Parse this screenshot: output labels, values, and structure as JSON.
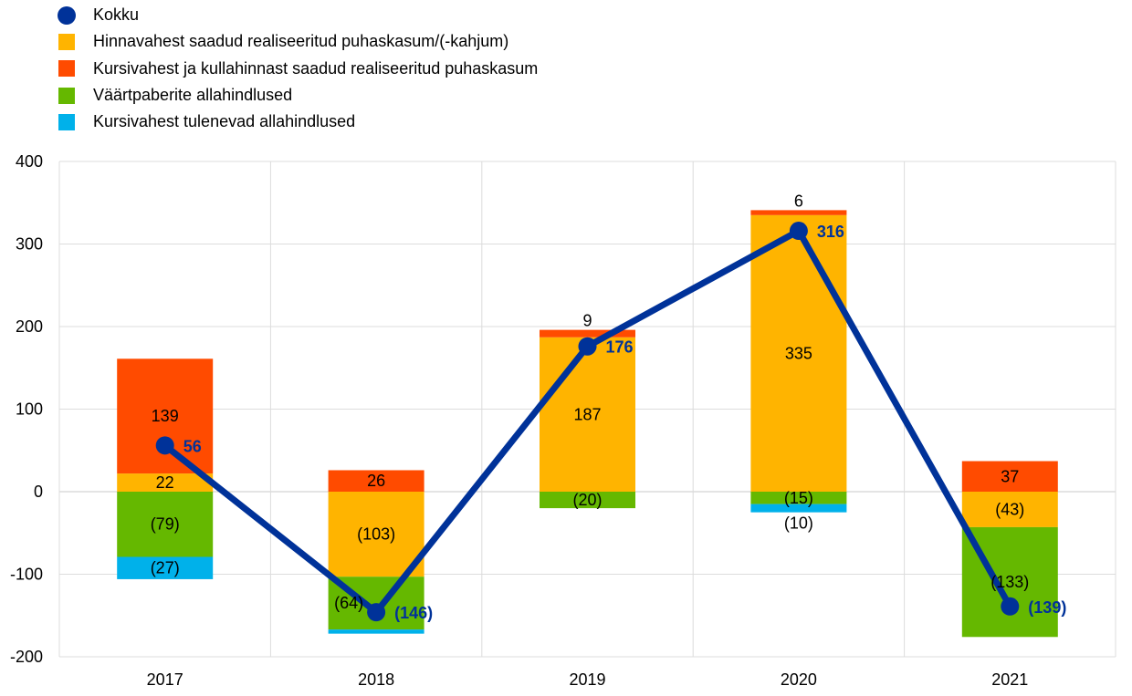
{
  "chart_data": {
    "type": "bar",
    "stacked": true,
    "categories": [
      "2017",
      "2018",
      "2019",
      "2020",
      "2021"
    ],
    "ylim": [
      -200,
      400
    ],
    "yticks": [
      400,
      300,
      200,
      100,
      0,
      -100,
      -200
    ],
    "ytick_labels": [
      "400",
      "300",
      "200",
      "100",
      "0",
      "-100",
      "-200"
    ],
    "grid": true,
    "legend_placement": "top-left",
    "series": [
      {
        "name": "Hinnavahest saadud realiseeritud puhaskasum/(-kahjum)",
        "color": "#FFB400",
        "values": [
          22,
          -103,
          187,
          335,
          -43
        ],
        "data_labels": [
          "22",
          "(103)",
          "187",
          "335",
          "(43)"
        ]
      },
      {
        "name": "Kursivahest ja kullahinnast saadud realiseeritud puhaskasum",
        "color": "#FF4B00",
        "values": [
          139,
          26,
          9,
          6,
          37
        ],
        "data_labels": [
          "139",
          "26",
          "9",
          "6",
          "37"
        ]
      },
      {
        "name": "Väärtpaberite allahindlused",
        "color": "#65B800",
        "values": [
          -79,
          -64,
          -20,
          -15,
          -133
        ],
        "data_labels": [
          "(79)",
          "(64)",
          "(20)",
          "(15)",
          "(133)"
        ]
      },
      {
        "name": "Kursivahest tulenevad allahindlused",
        "color": "#00B1EA",
        "values": [
          -27,
          -5,
          0,
          -10,
          0
        ],
        "data_labels": [
          "(27)",
          null,
          null,
          "(10)",
          null
        ]
      }
    ],
    "line": {
      "name": "Kokku",
      "color": "#003299",
      "values": [
        56,
        -146,
        176,
        316,
        -139
      ],
      "data_labels": [
        "56",
        "(146)",
        "176",
        "316",
        "(139)"
      ]
    }
  }
}
